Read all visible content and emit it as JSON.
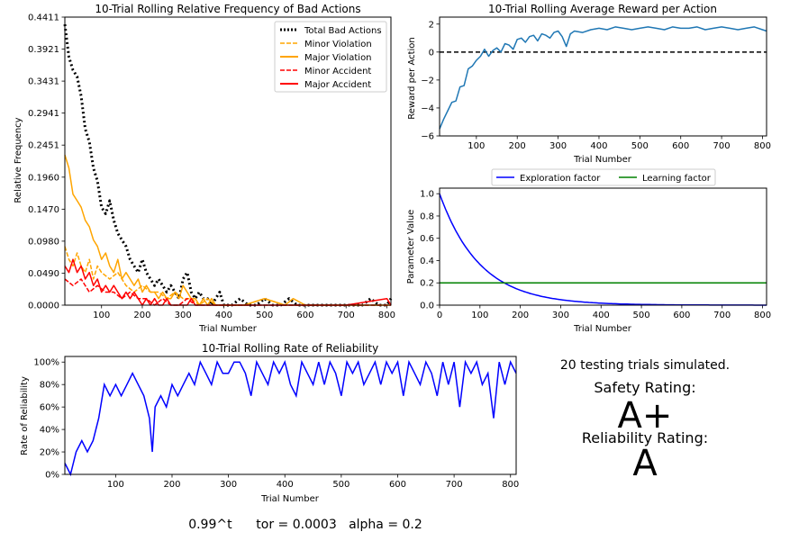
{
  "summary": {
    "testing_text": "20 testing trials simulated.",
    "safety_label": "Safety Rating:",
    "safety_grade": "A+",
    "reliability_label": "Reliability Rating:",
    "reliability_grade": "A",
    "grade_color": "#008000",
    "params_text": "0.99^t      tor = 0.0003   alpha = 0.2"
  },
  "chart_data": [
    {
      "id": "bad_actions",
      "type": "line",
      "title": "10-Trial Rolling Relative Frequency of Bad Actions",
      "xlabel": "Trial Number",
      "ylabel": "Relative Frequency",
      "xlim": [
        10,
        810
      ],
      "ylim": [
        0,
        0.4411
      ],
      "xticks": [
        "100",
        "200",
        "300",
        "400",
        "500",
        "600",
        "700",
        "800"
      ],
      "yticks": [
        "0.0000",
        "0.0490",
        "0.0980",
        "0.1470",
        "0.1960",
        "0.2451",
        "0.2941",
        "0.3431",
        "0.3921",
        "0.4411"
      ],
      "legend_position": "top-right",
      "series": [
        {
          "name": "Total Bad Actions",
          "color": "#000000",
          "style": "dotted",
          "x": [
            10,
            20,
            30,
            40,
            50,
            60,
            70,
            80,
            90,
            100,
            110,
            120,
            130,
            140,
            150,
            160,
            170,
            180,
            190,
            200,
            210,
            220,
            230,
            240,
            250,
            260,
            270,
            280,
            290,
            300,
            310,
            320,
            330,
            340,
            350,
            360,
            370,
            380,
            390,
            400,
            420,
            440,
            460,
            480,
            500,
            520,
            540,
            560,
            580,
            600,
            620,
            640,
            660,
            680,
            700,
            720,
            740,
            760,
            780,
            800,
            810
          ],
          "values": [
            0.43,
            0.38,
            0.36,
            0.35,
            0.32,
            0.27,
            0.25,
            0.21,
            0.19,
            0.15,
            0.14,
            0.16,
            0.13,
            0.11,
            0.1,
            0.09,
            0.07,
            0.06,
            0.05,
            0.07,
            0.05,
            0.04,
            0.03,
            0.04,
            0.03,
            0.02,
            0.03,
            0.02,
            0.01,
            0.04,
            0.05,
            0.02,
            0.01,
            0.02,
            0.01,
            0.01,
            0.0,
            0.01,
            0.02,
            0.0,
            0.0,
            0.01,
            0.0,
            0.0,
            0.01,
            0.0,
            0.0,
            0.01,
            0.0,
            0.0,
            0.0,
            0.0,
            0.0,
            0.0,
            0.0,
            0.0,
            0.0,
            0.01,
            0.0,
            0.0,
            0.01
          ]
        },
        {
          "name": "Minor Violation",
          "color": "#ffa500",
          "style": "dashed",
          "x": [
            10,
            20,
            30,
            40,
            50,
            60,
            70,
            80,
            90,
            100,
            120,
            140,
            160,
            180,
            200,
            220,
            240,
            260,
            280,
            300,
            320,
            340,
            360,
            380,
            400,
            450,
            500,
            550,
            600,
            650,
            700,
            750,
            800,
            810
          ],
          "values": [
            0.09,
            0.07,
            0.06,
            0.08,
            0.06,
            0.05,
            0.07,
            0.04,
            0.06,
            0.05,
            0.04,
            0.05,
            0.03,
            0.02,
            0.03,
            0.02,
            0.02,
            0.01,
            0.02,
            0.01,
            0.01,
            0.0,
            0.01,
            0.0,
            0.0,
            0.0,
            0.01,
            0.0,
            0.0,
            0.0,
            0.0,
            0.0,
            0.0,
            0.0
          ]
        },
        {
          "name": "Major Violation",
          "color": "#ffa500",
          "style": "solid",
          "x": [
            10,
            20,
            30,
            40,
            50,
            60,
            70,
            80,
            90,
            100,
            110,
            120,
            130,
            140,
            150,
            160,
            170,
            180,
            190,
            200,
            210,
            220,
            230,
            240,
            250,
            260,
            270,
            280,
            290,
            300,
            310,
            320,
            330,
            340,
            350,
            360,
            370,
            380,
            390,
            400,
            450,
            500,
            550,
            570,
            600,
            650,
            700,
            750,
            800,
            810
          ],
          "values": [
            0.23,
            0.21,
            0.17,
            0.16,
            0.15,
            0.13,
            0.12,
            0.1,
            0.09,
            0.07,
            0.08,
            0.06,
            0.05,
            0.07,
            0.04,
            0.05,
            0.04,
            0.03,
            0.04,
            0.02,
            0.03,
            0.02,
            0.02,
            0.01,
            0.02,
            0.01,
            0.01,
            0.02,
            0.01,
            0.03,
            0.02,
            0.01,
            0.01,
            0.0,
            0.01,
            0.0,
            0.01,
            0.0,
            0.0,
            0.0,
            0.0,
            0.01,
            0.0,
            0.01,
            0.0,
            0.0,
            0.0,
            0.0,
            0.0,
            0.0
          ]
        },
        {
          "name": "Minor Accident",
          "color": "#ff0000",
          "style": "dashed",
          "x": [
            10,
            30,
            50,
            70,
            90,
            110,
            130,
            150,
            170,
            190,
            210,
            230,
            250,
            270,
            290,
            310,
            330,
            350,
            400,
            500,
            600,
            700,
            800,
            810
          ],
          "values": [
            0.04,
            0.03,
            0.04,
            0.02,
            0.03,
            0.02,
            0.02,
            0.01,
            0.02,
            0.01,
            0.01,
            0.0,
            0.01,
            0.0,
            0.0,
            0.01,
            0.0,
            0.0,
            0.0,
            0.0,
            0.0,
            0.0,
            0.0,
            0.0
          ]
        },
        {
          "name": "Major Accident",
          "color": "#ff0000",
          "style": "solid",
          "x": [
            10,
            20,
            30,
            40,
            50,
            60,
            70,
            80,
            90,
            100,
            110,
            120,
            130,
            140,
            150,
            160,
            170,
            180,
            190,
            200,
            210,
            220,
            230,
            240,
            250,
            260,
            270,
            280,
            290,
            300,
            310,
            320,
            330,
            340,
            350,
            360,
            380,
            400,
            450,
            500,
            600,
            700,
            800,
            810
          ],
          "values": [
            0.06,
            0.05,
            0.07,
            0.05,
            0.06,
            0.04,
            0.05,
            0.03,
            0.04,
            0.02,
            0.03,
            0.02,
            0.03,
            0.02,
            0.01,
            0.02,
            0.01,
            0.02,
            0.01,
            0.0,
            0.01,
            0.0,
            0.01,
            0.0,
            0.0,
            0.01,
            0.0,
            0.0,
            0.0,
            0.0,
            0.0,
            0.01,
            0.0,
            0.0,
            0.0,
            0.0,
            0.0,
            0.0,
            0.0,
            0.0,
            0.0,
            0.0,
            0.01,
            0.0
          ]
        }
      ]
    },
    {
      "id": "reward",
      "type": "line",
      "title": "10-Trial Rolling Average Reward per Action",
      "xlabel": "Trial Number",
      "ylabel": "Reward per Action",
      "xlim": [
        10,
        810
      ],
      "ylim": [
        -6,
        2.5
      ],
      "xticks": [
        "100",
        "200",
        "300",
        "400",
        "500",
        "600",
        "700",
        "800"
      ],
      "yticks": [
        "−6",
        "−4",
        "−2",
        "0",
        "2"
      ],
      "reference_line": {
        "y": 0,
        "style": "dashed",
        "color": "#000000"
      },
      "series": [
        {
          "name": "",
          "color": "#1f77b4",
          "x": [
            10,
            20,
            30,
            40,
            50,
            60,
            70,
            80,
            90,
            100,
            110,
            120,
            130,
            140,
            150,
            160,
            170,
            180,
            190,
            200,
            210,
            220,
            230,
            240,
            250,
            260,
            270,
            280,
            290,
            300,
            310,
            320,
            330,
            340,
            360,
            380,
            400,
            420,
            440,
            460,
            480,
            500,
            520,
            540,
            560,
            580,
            600,
            620,
            640,
            660,
            680,
            700,
            720,
            740,
            760,
            780,
            800,
            810
          ],
          "values": [
            -5.5,
            -4.8,
            -4.2,
            -3.6,
            -3.5,
            -2.5,
            -2.4,
            -1.2,
            -1.0,
            -0.6,
            -0.3,
            0.2,
            -0.3,
            0.1,
            0.3,
            0.0,
            0.6,
            0.5,
            0.2,
            0.9,
            1.0,
            0.7,
            1.1,
            1.2,
            0.8,
            1.3,
            1.2,
            1.0,
            1.4,
            1.5,
            1.1,
            0.4,
            1.3,
            1.5,
            1.4,
            1.6,
            1.7,
            1.6,
            1.8,
            1.7,
            1.6,
            1.7,
            1.8,
            1.7,
            1.6,
            1.8,
            1.7,
            1.7,
            1.8,
            1.6,
            1.7,
            1.8,
            1.7,
            1.6,
            1.7,
            1.8,
            1.6,
            1.5
          ]
        }
      ]
    },
    {
      "id": "params",
      "type": "line",
      "title": "",
      "xlabel": "Trial Number",
      "ylabel": "Parameter Value",
      "xlim": [
        0,
        810
      ],
      "ylim": [
        0,
        1.05
      ],
      "xticks": [
        "0",
        "100",
        "200",
        "300",
        "400",
        "500",
        "600",
        "700",
        "800"
      ],
      "yticks": [
        "0.0",
        "0.2",
        "0.4",
        "0.6",
        "0.8",
        "1.0"
      ],
      "legend_position": "top-center",
      "series": [
        {
          "name": "Exploration factor",
          "color": "#0000ff",
          "formula": "0.99^t"
        },
        {
          "name": "Learning factor",
          "color": "#008000",
          "constant": 0.2
        }
      ]
    },
    {
      "id": "reliability",
      "type": "line",
      "title": "10-Trial Rolling Rate of Reliability",
      "xlabel": "Trial Number",
      "ylabel": "Rate of Reliability",
      "xlim": [
        10,
        810
      ],
      "ylim": [
        0,
        105
      ],
      "xticks": [
        "100",
        "200",
        "300",
        "400",
        "500",
        "600",
        "700",
        "800"
      ],
      "yticks": [
        "0%",
        "20%",
        "40%",
        "60%",
        "80%",
        "100%"
      ],
      "series": [
        {
          "name": "",
          "color": "#0000ff",
          "x": [
            10,
            20,
            30,
            40,
            50,
            60,
            70,
            80,
            90,
            100,
            110,
            120,
            130,
            140,
            150,
            160,
            165,
            170,
            180,
            190,
            200,
            210,
            220,
            230,
            240,
            250,
            260,
            270,
            280,
            290,
            300,
            310,
            320,
            330,
            340,
            350,
            360,
            370,
            380,
            390,
            400,
            410,
            420,
            430,
            440,
            450,
            460,
            470,
            480,
            490,
            500,
            510,
            520,
            530,
            540,
            550,
            560,
            570,
            580,
            590,
            600,
            610,
            620,
            630,
            640,
            650,
            660,
            670,
            680,
            690,
            700,
            710,
            720,
            730,
            740,
            750,
            760,
            770,
            780,
            790,
            800,
            810
          ],
          "values": [
            10,
            0,
            20,
            30,
            20,
            30,
            50,
            80,
            70,
            80,
            70,
            80,
            90,
            80,
            70,
            50,
            20,
            60,
            70,
            60,
            80,
            70,
            80,
            90,
            80,
            100,
            90,
            80,
            100,
            90,
            90,
            100,
            100,
            90,
            70,
            100,
            90,
            80,
            100,
            90,
            100,
            80,
            70,
            100,
            90,
            80,
            100,
            80,
            100,
            90,
            70,
            100,
            90,
            100,
            80,
            90,
            100,
            80,
            100,
            90,
            100,
            70,
            100,
            90,
            80,
            100,
            90,
            70,
            100,
            80,
            100,
            60,
            100,
            90,
            100,
            80,
            90,
            50,
            100,
            80,
            100,
            90
          ]
        }
      ]
    }
  ]
}
